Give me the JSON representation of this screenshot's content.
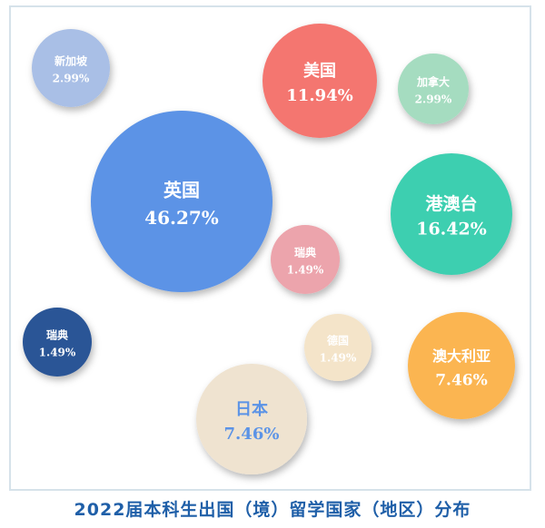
{
  "chart_data": {
    "type": "bubble",
    "title": "2022届本科生出国（境）留学国家（地区）分布",
    "points": [
      {
        "name": "英国",
        "value": "46.27%",
        "color": "#5b93e6",
        "text_color": "#ffffff"
      },
      {
        "name": "港澳台",
        "value": "16.42%",
        "color": "#3ecfb0",
        "text_color": "#ffffff"
      },
      {
        "name": "美国",
        "value": "11.94%",
        "color": "#f47670",
        "text_color": "#ffffff"
      },
      {
        "name": "日本",
        "value": "7.46%",
        "color": "#efe3d0",
        "text_color": "#5b93e6"
      },
      {
        "name": "澳大利亚",
        "value": "7.46%",
        "color": "#fbb551",
        "text_color": "#ffffff"
      },
      {
        "name": "新加坡",
        "value": "2.99%",
        "color": "#a9bfe6",
        "text_color": "#ffffff"
      },
      {
        "name": "加拿大",
        "value": "2.99%",
        "color": "#a5dcc0",
        "text_color": "#ffffff"
      },
      {
        "name": "瑞典",
        "value": "1.49%",
        "color": "#eca4ac",
        "text_color": "#ffffff"
      },
      {
        "name": "德国",
        "value": "1.49%",
        "color": "#f4e4c9",
        "text_color": "#ffffff"
      },
      {
        "name": "瑞典",
        "value": "1.49%",
        "color": "#2b5596",
        "text_color": "#ffffff"
      }
    ]
  },
  "colors": {
    "title": "#1f5fa8",
    "frame_border": "#d6e2ea"
  }
}
